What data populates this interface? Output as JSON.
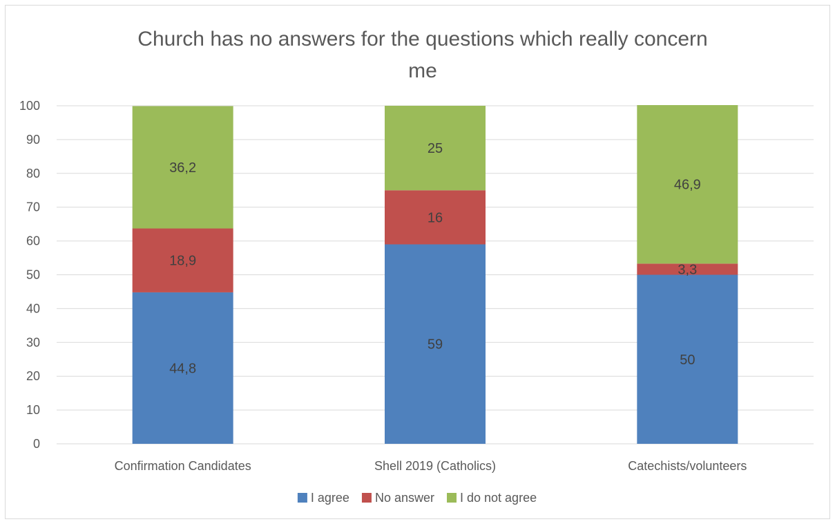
{
  "chart_data": {
    "type": "bar",
    "stacked": true,
    "title_lines": [
      "Church has no answers for the questions which really concern",
      "me"
    ],
    "categories": [
      "Confirmation Candidates",
      "Shell 2019 (Catholics)",
      "Catechists/volunteers"
    ],
    "series": [
      {
        "name": "I agree",
        "values": [
          44.8,
          59,
          50
        ],
        "labels": [
          "44,8",
          "59",
          "50"
        ],
        "color": "#4f81bd"
      },
      {
        "name": "No answer",
        "values": [
          18.9,
          16,
          3.3
        ],
        "labels": [
          "18,9",
          "16",
          "3,3"
        ],
        "color": "#c0504d"
      },
      {
        "name": "I do not agree",
        "values": [
          36.2,
          25,
          46.9
        ],
        "labels": [
          "36,2",
          "25",
          "46,9"
        ],
        "color": "#9bbb59"
      }
    ],
    "ylim": [
      0,
      100
    ],
    "yticks": [
      "0",
      "10",
      "20",
      "30",
      "40",
      "50",
      "60",
      "70",
      "80",
      "90",
      "100"
    ],
    "grid": true,
    "legend": "bottom",
    "colors": {
      "gridline": "#d9d9d9",
      "text": "#595959"
    }
  }
}
